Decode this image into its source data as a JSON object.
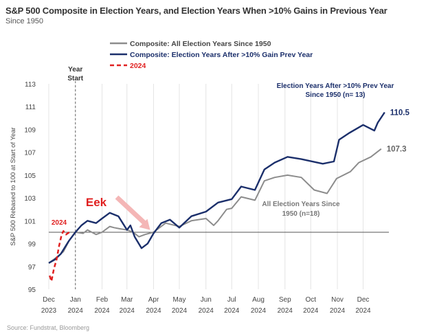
{
  "title": "S&P 500 Composite in Election Years, and Election Years When >10% Gains in Previous Year",
  "subtitle": "Since 1950",
  "source": "Source: Fundstrat, Bloomberg",
  "chart_data": {
    "type": "line",
    "ylabel": "S&P 500 Rebased to 100 at Start of Year",
    "ylim": [
      95,
      113
    ],
    "yticks": [
      95,
      97,
      99,
      101,
      103,
      105,
      107,
      109,
      111,
      113
    ],
    "xlim": [
      "2023-12-01",
      "2024-12-31"
    ],
    "xticks": [
      {
        "date": "2023-12-01",
        "label": [
          "Dec",
          "2023"
        ]
      },
      {
        "date": "2024-01-01",
        "label": [
          "Jan",
          "2024"
        ]
      },
      {
        "date": "2024-02-01",
        "label": [
          "Feb",
          "2024"
        ]
      },
      {
        "date": "2024-03-01",
        "label": [
          "Mar",
          "2024"
        ]
      },
      {
        "date": "2024-04-01",
        "label": [
          "Apr",
          "2024"
        ]
      },
      {
        "date": "2024-05-01",
        "label": [
          "May",
          "2024"
        ]
      },
      {
        "date": "2024-06-01",
        "label": [
          "Jun",
          "2024"
        ]
      },
      {
        "date": "2024-07-01",
        "label": [
          "Jul",
          "2024"
        ]
      },
      {
        "date": "2024-08-01",
        "label": [
          "Aug",
          "2024"
        ]
      },
      {
        "date": "2024-09-01",
        "label": [
          "Sep",
          "2024"
        ]
      },
      {
        "date": "2024-10-01",
        "label": [
          "Oct",
          "2024"
        ]
      },
      {
        "date": "2024-11-01",
        "label": [
          "Nov",
          "2024"
        ]
      },
      {
        "date": "2024-12-01",
        "label": [
          "Dec",
          "2024"
        ]
      }
    ],
    "grid": "vertical",
    "reference_line": 100,
    "year_start_marker": {
      "date": "2024-01-01",
      "label": [
        "Year",
        "Start"
      ]
    },
    "legend_placement": "top-center",
    "series": [
      {
        "name": "Composite: All Election Years Since 1950",
        "color": "#8c8c8c",
        "style": "solid",
        "end_label": "107.3",
        "points": [
          [
            "2023-12-01",
            97.3
          ],
          [
            "2023-12-10",
            97.8
          ],
          [
            "2023-12-18",
            98.3
          ],
          [
            "2023-12-25",
            99.3
          ],
          [
            "2024-01-01",
            100.0
          ],
          [
            "2024-01-10",
            99.9
          ],
          [
            "2024-01-15",
            100.2
          ],
          [
            "2024-01-25",
            99.8
          ],
          [
            "2024-02-01",
            100.0
          ],
          [
            "2024-02-10",
            100.5
          ],
          [
            "2024-02-15",
            100.4
          ],
          [
            "2024-02-22",
            100.3
          ],
          [
            "2024-03-01",
            100.2
          ],
          [
            "2024-03-08",
            100.0
          ],
          [
            "2024-03-15",
            99.6
          ],
          [
            "2024-03-22",
            99.8
          ],
          [
            "2024-04-01",
            100.0
          ],
          [
            "2024-04-15",
            100.8
          ],
          [
            "2024-05-01",
            100.5
          ],
          [
            "2024-05-15",
            101.0
          ],
          [
            "2024-06-01",
            101.2
          ],
          [
            "2024-06-10",
            100.6
          ],
          [
            "2024-06-15",
            101.0
          ],
          [
            "2024-06-25",
            102.0
          ],
          [
            "2024-07-01",
            102.1
          ],
          [
            "2024-07-12",
            103.1
          ],
          [
            "2024-07-28",
            102.8
          ],
          [
            "2024-08-08",
            104.5
          ],
          [
            "2024-08-20",
            104.8
          ],
          [
            "2024-09-04",
            105.0
          ],
          [
            "2024-09-20",
            104.8
          ],
          [
            "2024-10-05",
            103.7
          ],
          [
            "2024-10-20",
            103.4
          ],
          [
            "2024-10-31",
            104.7
          ],
          [
            "2024-11-16",
            105.3
          ],
          [
            "2024-11-26",
            106.1
          ],
          [
            "2024-12-10",
            106.6
          ],
          [
            "2024-12-22",
            107.3
          ]
        ]
      },
      {
        "name": "Composite: Election Years After >10% Gain Prev Year",
        "color": "#1b2f6b",
        "style": "solid",
        "end_label": "110.5",
        "points": [
          [
            "2023-12-01",
            97.3
          ],
          [
            "2023-12-08",
            97.6
          ],
          [
            "2023-12-15",
            98.1
          ],
          [
            "2023-12-24",
            99.2
          ],
          [
            "2024-01-01",
            100.0
          ],
          [
            "2024-01-08",
            100.6
          ],
          [
            "2024-01-15",
            101.0
          ],
          [
            "2024-01-25",
            100.8
          ],
          [
            "2024-02-01",
            101.2
          ],
          [
            "2024-02-10",
            101.7
          ],
          [
            "2024-02-20",
            101.4
          ],
          [
            "2024-03-01",
            100.2
          ],
          [
            "2024-03-05",
            100.6
          ],
          [
            "2024-03-10",
            99.6
          ],
          [
            "2024-03-18",
            98.6
          ],
          [
            "2024-03-25",
            99.0
          ],
          [
            "2024-04-01",
            99.9
          ],
          [
            "2024-04-10",
            100.8
          ],
          [
            "2024-04-20",
            101.1
          ],
          [
            "2024-05-01",
            100.4
          ],
          [
            "2024-05-15",
            101.4
          ],
          [
            "2024-06-01",
            101.8
          ],
          [
            "2024-06-15",
            102.6
          ],
          [
            "2024-07-01",
            102.9
          ],
          [
            "2024-07-12",
            104.0
          ],
          [
            "2024-07-28",
            103.7
          ],
          [
            "2024-08-08",
            105.5
          ],
          [
            "2024-08-20",
            106.1
          ],
          [
            "2024-09-04",
            106.6
          ],
          [
            "2024-09-20",
            106.4
          ],
          [
            "2024-10-15",
            106.0
          ],
          [
            "2024-10-28",
            106.2
          ],
          [
            "2024-11-03",
            108.1
          ],
          [
            "2024-11-15",
            108.7
          ],
          [
            "2024-12-01",
            109.4
          ],
          [
            "2024-12-14",
            108.9
          ],
          [
            "2024-12-18",
            109.6
          ],
          [
            "2024-12-26",
            110.5
          ]
        ]
      },
      {
        "name": "2024",
        "color": "#e02020",
        "style": "dashed",
        "points": [
          [
            "2023-12-02",
            96.2
          ],
          [
            "2023-12-04",
            95.7
          ],
          [
            "2023-12-07",
            96.8
          ],
          [
            "2023-12-10",
            97.6
          ],
          [
            "2023-12-13",
            98.8
          ],
          [
            "2023-12-16",
            99.8
          ],
          [
            "2023-12-18",
            100.1
          ],
          [
            "2023-12-21",
            99.8
          ],
          [
            "2023-12-25",
            100.0
          ]
        ]
      }
    ],
    "annotations": [
      {
        "text": "Election Years After >10% Prev Year",
        "color": "#1b2f6b"
      },
      {
        "text": "Since 1950 (n= 13)",
        "color": "#1b2f6b"
      },
      {
        "text": "All Election Years Since",
        "color": "#777777"
      },
      {
        "text": "1950 (n=18)",
        "color": "#777777"
      },
      {
        "text": "Eek",
        "color": "#e02020"
      },
      {
        "text": "2024",
        "color": "#e02020"
      }
    ],
    "arrow": {
      "color": "#f4b6b6",
      "points_to": [
        "2024-03-28",
        100.2
      ]
    }
  }
}
